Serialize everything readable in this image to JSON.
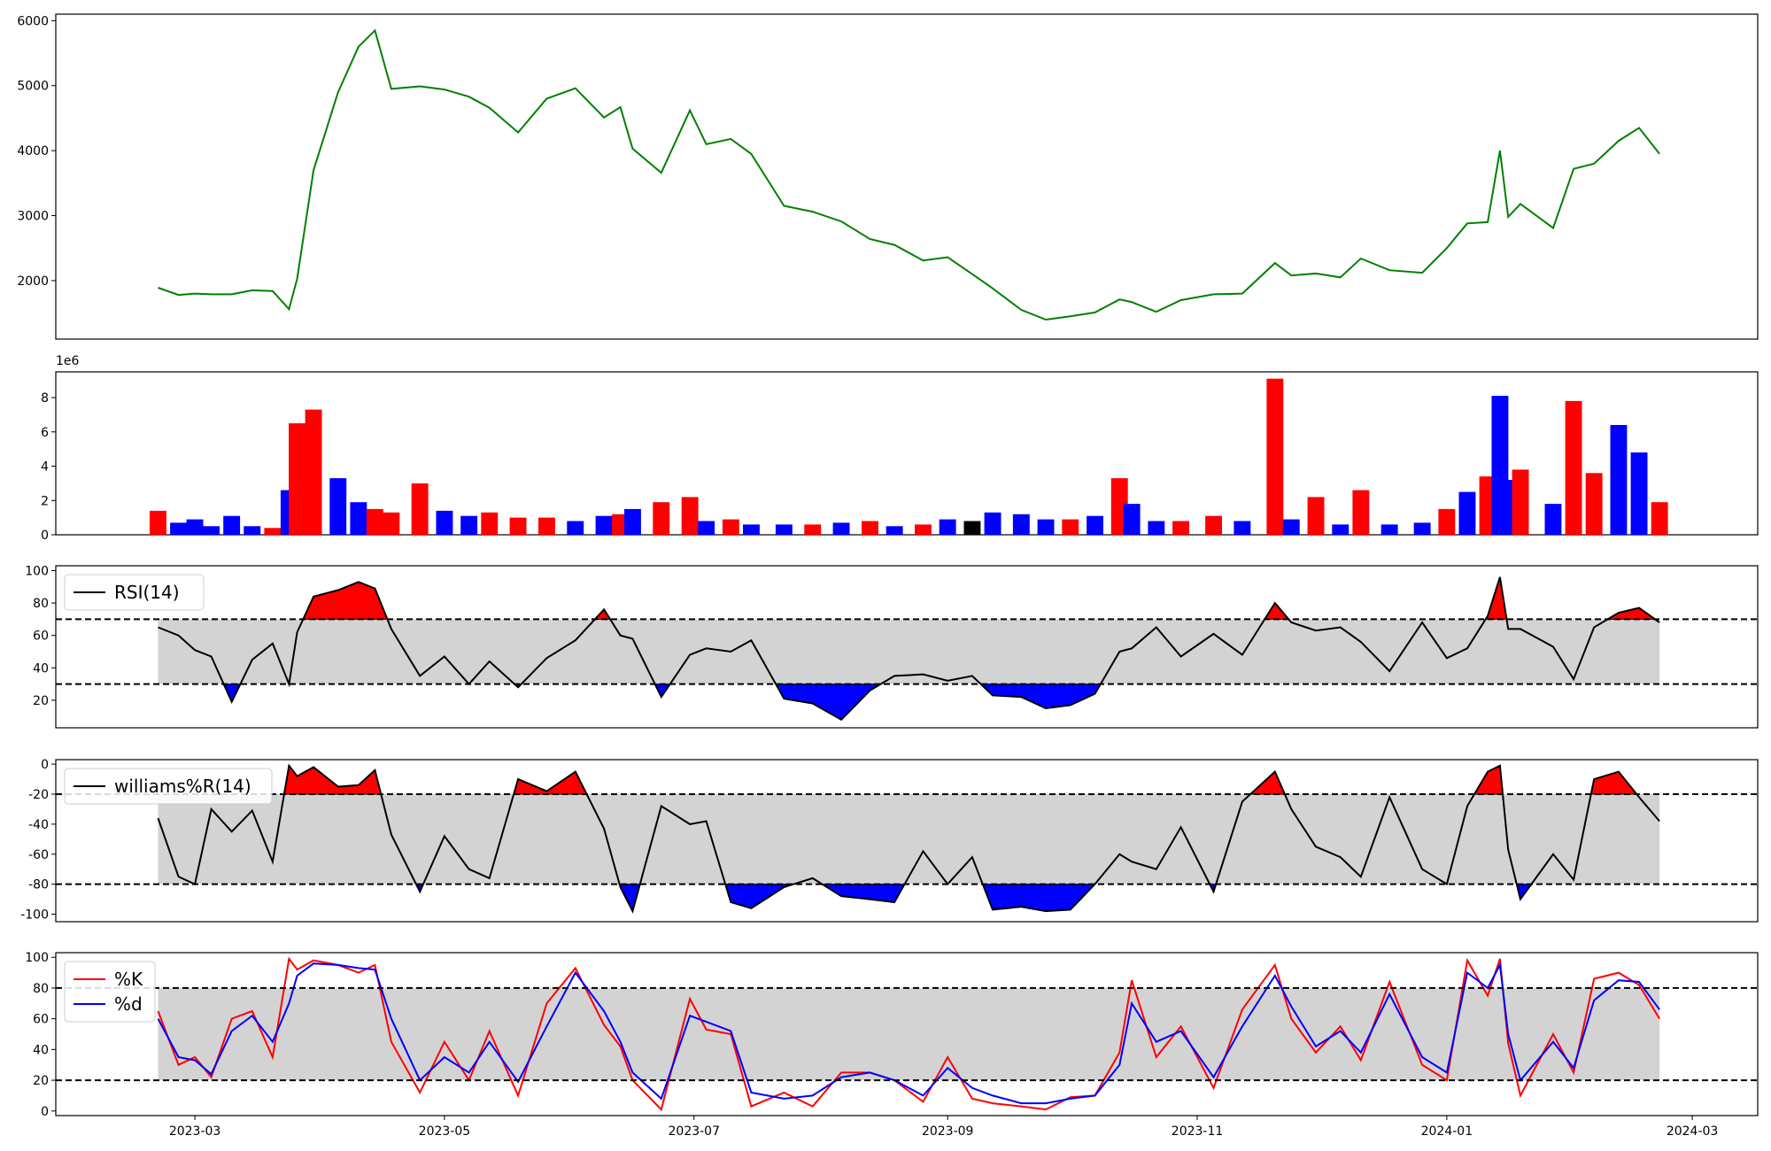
{
  "chart_data": [
    {
      "type": "line",
      "panel": "price",
      "color": "#008000",
      "ylim": [
        1100,
        6100
      ],
      "yticks": [
        "2000",
        "3000",
        "4000",
        "5000",
        "6000"
      ],
      "x": [
        "2023-02-20",
        "2023-02-25",
        "2023-03-01",
        "2023-03-05",
        "2023-03-10",
        "2023-03-15",
        "2023-03-20",
        "2023-03-24",
        "2023-03-26",
        "2023-03-30",
        "2023-04-05",
        "2023-04-10",
        "2023-04-14",
        "2023-04-18",
        "2023-04-25",
        "2023-05-01",
        "2023-05-07",
        "2023-05-12",
        "2023-05-19",
        "2023-05-26",
        "2023-06-02",
        "2023-06-09",
        "2023-06-13",
        "2023-06-16",
        "2023-06-23",
        "2023-06-30",
        "2023-07-04",
        "2023-07-10",
        "2023-07-15",
        "2023-07-23",
        "2023-07-30",
        "2023-08-06",
        "2023-08-13",
        "2023-08-19",
        "2023-08-26",
        "2023-09-01",
        "2023-09-07",
        "2023-09-12",
        "2023-09-19",
        "2023-09-25",
        "2023-10-01",
        "2023-10-07",
        "2023-10-13",
        "2023-10-16",
        "2023-10-22",
        "2023-10-28",
        "2023-11-05",
        "2023-11-12",
        "2023-11-20",
        "2023-11-24",
        "2023-11-30",
        "2023-12-06",
        "2023-12-11",
        "2023-12-18",
        "2023-12-26",
        "2024-01-01",
        "2024-01-06",
        "2024-01-11",
        "2024-01-14",
        "2024-01-16",
        "2024-01-19",
        "2024-01-27",
        "2024-02-01",
        "2024-02-06",
        "2024-02-12",
        "2024-02-17",
        "2024-02-22"
      ],
      "values": [
        1890,
        1780,
        1800,
        1790,
        1790,
        1850,
        1840,
        1560,
        2030,
        3700,
        4900,
        5600,
        5850,
        4950,
        4990,
        4940,
        4830,
        4660,
        4280,
        4800,
        4960,
        4510,
        4670,
        4030,
        3660,
        4620,
        4100,
        4180,
        3950,
        3150,
        3060,
        2910,
        2640,
        2550,
        2310,
        2360,
        2100,
        1880,
        1550,
        1400,
        1450,
        1510,
        1710,
        1670,
        1520,
        1700,
        1790,
        1800,
        2270,
        2080,
        2110,
        2050,
        2340,
        2160,
        2120,
        2500,
        2880,
        2900,
        4000,
        2980,
        3180,
        2810,
        3720,
        3800,
        4150,
        4350,
        3950
      ]
    },
    {
      "type": "bar",
      "panel": "volume",
      "scale_note": "1e6",
      "ylim": [
        0,
        9.5
      ],
      "yticks": [
        "0",
        "2",
        "4",
        "6",
        "8"
      ],
      "colors": {
        "up": "#ff0000",
        "down": "#0000ff",
        "flat": "#000000"
      },
      "x": [
        "2023-02-20",
        "2023-02-25",
        "2023-03-01",
        "2023-03-05",
        "2023-03-10",
        "2023-03-15",
        "2023-03-20",
        "2023-03-24",
        "2023-03-26",
        "2023-03-30",
        "2023-04-05",
        "2023-04-10",
        "2023-04-14",
        "2023-04-18",
        "2023-04-25",
        "2023-05-01",
        "2023-05-07",
        "2023-05-12",
        "2023-05-19",
        "2023-05-26",
        "2023-06-02",
        "2023-06-09",
        "2023-06-13",
        "2023-06-16",
        "2023-06-23",
        "2023-06-30",
        "2023-07-04",
        "2023-07-10",
        "2023-07-15",
        "2023-07-23",
        "2023-07-30",
        "2023-08-06",
        "2023-08-13",
        "2023-08-19",
        "2023-08-26",
        "2023-09-01",
        "2023-09-07",
        "2023-09-12",
        "2023-09-19",
        "2023-09-25",
        "2023-10-01",
        "2023-10-07",
        "2023-10-13",
        "2023-10-16",
        "2023-10-22",
        "2023-10-28",
        "2023-11-05",
        "2023-11-12",
        "2023-11-20",
        "2023-11-24",
        "2023-11-30",
        "2023-12-06",
        "2023-12-11",
        "2023-12-18",
        "2023-12-26",
        "2024-01-01",
        "2024-01-06",
        "2024-01-11",
        "2024-01-14",
        "2024-01-16",
        "2024-01-19",
        "2024-01-27",
        "2024-02-01",
        "2024-02-06",
        "2024-02-12",
        "2024-02-17",
        "2024-02-22"
      ],
      "values": [
        1.4,
        0.7,
        0.9,
        0.5,
        1.1,
        0.5,
        0.4,
        2.6,
        6.5,
        7.3,
        3.3,
        1.9,
        1.5,
        1.3,
        3.0,
        1.4,
        1.1,
        1.3,
        1.0,
        1.0,
        0.8,
        1.1,
        1.2,
        1.5,
        1.9,
        2.2,
        0.8,
        0.9,
        0.6,
        0.6,
        0.6,
        0.7,
        0.8,
        0.5,
        0.6,
        0.9,
        0.8,
        1.3,
        1.2,
        0.9,
        0.9,
        1.1,
        3.3,
        1.8,
        0.8,
        0.8,
        1.1,
        0.8,
        9.1,
        0.9,
        2.2,
        0.6,
        2.6,
        0.6,
        0.7,
        1.5,
        2.5,
        3.4,
        8.1,
        3.2,
        3.8,
        1.8,
        7.8,
        3.6,
        6.4,
        4.8,
        1.9
      ],
      "dirs": [
        "u",
        "d",
        "d",
        "d",
        "d",
        "d",
        "u",
        "d",
        "u",
        "u",
        "d",
        "d",
        "u",
        "u",
        "u",
        "d",
        "d",
        "u",
        "u",
        "u",
        "d",
        "d",
        "u",
        "d",
        "u",
        "u",
        "d",
        "u",
        "d",
        "d",
        "u",
        "d",
        "u",
        "d",
        "u",
        "d",
        "f",
        "d",
        "d",
        "d",
        "u",
        "d",
        "u",
        "d",
        "d",
        "u",
        "u",
        "d",
        "u",
        "d",
        "u",
        "d",
        "u",
        "d",
        "d",
        "u",
        "d",
        "u",
        "d",
        "d",
        "u",
        "d",
        "u",
        "u",
        "d",
        "d",
        "u"
      ]
    },
    {
      "type": "line",
      "panel": "rsi",
      "ylim": [
        3,
        103
      ],
      "yticks": [
        "20",
        "40",
        "60",
        "80",
        "100"
      ],
      "band": [
        30,
        70
      ],
      "legend": "RSI(14)",
      "x": [
        "2023-02-20",
        "2023-02-25",
        "2023-03-01",
        "2023-03-05",
        "2023-03-10",
        "2023-03-15",
        "2023-03-20",
        "2023-03-24",
        "2023-03-26",
        "2023-03-30",
        "2023-04-05",
        "2023-04-10",
        "2023-04-14",
        "2023-04-18",
        "2023-04-25",
        "2023-05-01",
        "2023-05-07",
        "2023-05-12",
        "2023-05-19",
        "2023-05-26",
        "2023-06-02",
        "2023-06-09",
        "2023-06-13",
        "2023-06-16",
        "2023-06-23",
        "2023-06-30",
        "2023-07-04",
        "2023-07-10",
        "2023-07-15",
        "2023-07-23",
        "2023-07-30",
        "2023-08-06",
        "2023-08-13",
        "2023-08-19",
        "2023-08-26",
        "2023-09-01",
        "2023-09-07",
        "2023-09-12",
        "2023-09-19",
        "2023-09-25",
        "2023-10-01",
        "2023-10-07",
        "2023-10-13",
        "2023-10-16",
        "2023-10-22",
        "2023-10-28",
        "2023-11-05",
        "2023-11-12",
        "2023-11-20",
        "2023-11-24",
        "2023-11-30",
        "2023-12-06",
        "2023-12-11",
        "2023-12-18",
        "2023-12-26",
        "2024-01-01",
        "2024-01-06",
        "2024-01-11",
        "2024-01-14",
        "2024-01-16",
        "2024-01-19",
        "2024-01-27",
        "2024-02-01",
        "2024-02-06",
        "2024-02-12",
        "2024-02-17",
        "2024-02-22"
      ],
      "values": [
        65,
        60,
        51,
        47,
        19,
        45,
        55,
        30,
        62,
        84,
        88,
        93,
        89,
        64,
        35,
        47,
        30,
        44,
        28,
        46,
        57,
        76,
        60,
        58,
        22,
        48,
        52,
        50,
        57,
        21,
        18,
        8,
        26,
        35,
        36,
        32,
        35,
        23,
        22,
        15,
        17,
        24,
        50,
        52,
        65,
        47,
        61,
        48,
        80,
        68,
        63,
        65,
        56,
        38,
        68,
        46,
        52,
        72,
        96,
        64,
        64,
        53,
        33,
        65,
        74,
        77,
        68
      ]
    },
    {
      "type": "line",
      "panel": "williams",
      "ylim": [
        -105,
        3
      ],
      "yticks": [
        "0",
        "-20",
        "-40",
        "-60",
        "-80",
        "-100"
      ],
      "band": [
        -80,
        -20
      ],
      "legend": "williams%R(14)",
      "x": [
        "2023-02-20",
        "2023-02-25",
        "2023-03-01",
        "2023-03-05",
        "2023-03-10",
        "2023-03-15",
        "2023-03-20",
        "2023-03-24",
        "2023-03-26",
        "2023-03-30",
        "2023-04-05",
        "2023-04-10",
        "2023-04-14",
        "2023-04-18",
        "2023-04-25",
        "2023-05-01",
        "2023-05-07",
        "2023-05-12",
        "2023-05-19",
        "2023-05-26",
        "2023-06-02",
        "2023-06-09",
        "2023-06-13",
        "2023-06-16",
        "2023-06-23",
        "2023-06-30",
        "2023-07-04",
        "2023-07-10",
        "2023-07-15",
        "2023-07-23",
        "2023-07-30",
        "2023-08-06",
        "2023-08-13",
        "2023-08-19",
        "2023-08-26",
        "2023-09-01",
        "2023-09-07",
        "2023-09-12",
        "2023-09-19",
        "2023-09-25",
        "2023-10-01",
        "2023-10-07",
        "2023-10-13",
        "2023-10-16",
        "2023-10-22",
        "2023-10-28",
        "2023-11-05",
        "2023-11-12",
        "2023-11-20",
        "2023-11-24",
        "2023-11-30",
        "2023-12-06",
        "2023-12-11",
        "2023-12-18",
        "2023-12-26",
        "2024-01-01",
        "2024-01-06",
        "2024-01-11",
        "2024-01-14",
        "2024-01-16",
        "2024-01-19",
        "2024-01-27",
        "2024-02-01",
        "2024-02-06",
        "2024-02-12",
        "2024-02-17",
        "2024-02-22"
      ],
      "values": [
        -36,
        -75,
        -80,
        -30,
        -45,
        -31,
        -65,
        -1,
        -8,
        -2,
        -15,
        -14,
        -4,
        -47,
        -85,
        -48,
        -70,
        -76,
        -10,
        -18,
        -5,
        -43,
        -82,
        -98,
        -28,
        -40,
        -38,
        -92,
        -96,
        -82,
        -76,
        -88,
        -90,
        -92,
        -58,
        -80,
        -62,
        -97,
        -95,
        -98,
        -97,
        -80,
        -60,
        -65,
        -70,
        -42,
        -85,
        -25,
        -5,
        -30,
        -55,
        -62,
        -75,
        -22,
        -70,
        -80,
        -28,
        -5,
        -1,
        -57,
        -90,
        -60,
        -77,
        -10,
        -5,
        -22,
        -38
      ]
    },
    {
      "type": "line",
      "panel": "stochastic",
      "ylim": [
        -3,
        103
      ],
      "yticks": [
        "0",
        "20",
        "40",
        "60",
        "80",
        "100"
      ],
      "band": [
        20,
        80
      ],
      "x": [
        "2023-02-20",
        "2023-02-25",
        "2023-03-01",
        "2023-03-05",
        "2023-03-10",
        "2023-03-15",
        "2023-03-20",
        "2023-03-24",
        "2023-03-26",
        "2023-03-30",
        "2023-04-05",
        "2023-04-10",
        "2023-04-14",
        "2023-04-18",
        "2023-04-25",
        "2023-05-01",
        "2023-05-07",
        "2023-05-12",
        "2023-05-19",
        "2023-05-26",
        "2023-06-02",
        "2023-06-09",
        "2023-06-13",
        "2023-06-16",
        "2023-06-23",
        "2023-06-30",
        "2023-07-04",
        "2023-07-10",
        "2023-07-15",
        "2023-07-23",
        "2023-07-30",
        "2023-08-06",
        "2023-08-13",
        "2023-08-19",
        "2023-08-26",
        "2023-09-01",
        "2023-09-07",
        "2023-09-12",
        "2023-09-19",
        "2023-09-25",
        "2023-10-01",
        "2023-10-07",
        "2023-10-13",
        "2023-10-16",
        "2023-10-22",
        "2023-10-28",
        "2023-11-05",
        "2023-11-12",
        "2023-11-20",
        "2023-11-24",
        "2023-11-30",
        "2023-12-06",
        "2023-12-11",
        "2023-12-18",
        "2023-12-26",
        "2024-01-01",
        "2024-01-06",
        "2024-01-11",
        "2024-01-14",
        "2024-01-16",
        "2024-01-19",
        "2024-01-27",
        "2024-02-01",
        "2024-02-06",
        "2024-02-12",
        "2024-02-17",
        "2024-02-22"
      ],
      "series": [
        {
          "name": "%K",
          "color": "#ff0000",
          "values": [
            65,
            30,
            35,
            22,
            60,
            65,
            35,
            99,
            92,
            98,
            95,
            90,
            95,
            45,
            12,
            45,
            20,
            52,
            10,
            70,
            93,
            56,
            42,
            20,
            1,
            73,
            53,
            50,
            3,
            12,
            3,
            25,
            25,
            20,
            6,
            35,
            8,
            5,
            3,
            1,
            9,
            10,
            38,
            85,
            35,
            55,
            15,
            66,
            95,
            60,
            38,
            55,
            33,
            84,
            30,
            20,
            98,
            75,
            99,
            44,
            10,
            50,
            25,
            86,
            90,
            82,
            60
          ]
        },
        {
          "name": "%d",
          "color": "#0000ff",
          "values": [
            60,
            35,
            33,
            24,
            52,
            62,
            45,
            70,
            88,
            96,
            95,
            93,
            92,
            60,
            20,
            35,
            25,
            45,
            19,
            55,
            90,
            65,
            45,
            25,
            8,
            62,
            58,
            52,
            12,
            8,
            10,
            22,
            25,
            20,
            10,
            28,
            15,
            10,
            5,
            5,
            8,
            10,
            30,
            70,
            45,
            52,
            22,
            55,
            88,
            68,
            42,
            52,
            38,
            76,
            35,
            25,
            90,
            80,
            95,
            50,
            20,
            45,
            28,
            72,
            85,
            84,
            66
          ]
        }
      ],
      "legend": [
        "%K",
        "%d"
      ]
    }
  ],
  "x_axis": {
    "ticks": [
      {
        "date": "2023-03-01",
        "label": "2023-03"
      },
      {
        "date": "2023-05-01",
        "label": "2023-05"
      },
      {
        "date": "2023-07-01",
        "label": "2023-07"
      },
      {
        "date": "2023-09-01",
        "label": "2023-09"
      },
      {
        "date": "2023-11-01",
        "label": "2023-11"
      },
      {
        "date": "2024-01-01",
        "label": "2024-01"
      },
      {
        "date": "2024-03-01",
        "label": "2024-03"
      }
    ],
    "range": [
      "2023-01-26",
      "2024-03-17"
    ]
  },
  "colors": {
    "band_fill": "#d3d3d3",
    "overbought": "#ff0000",
    "oversold": "#0000ff",
    "line": "#000000"
  }
}
